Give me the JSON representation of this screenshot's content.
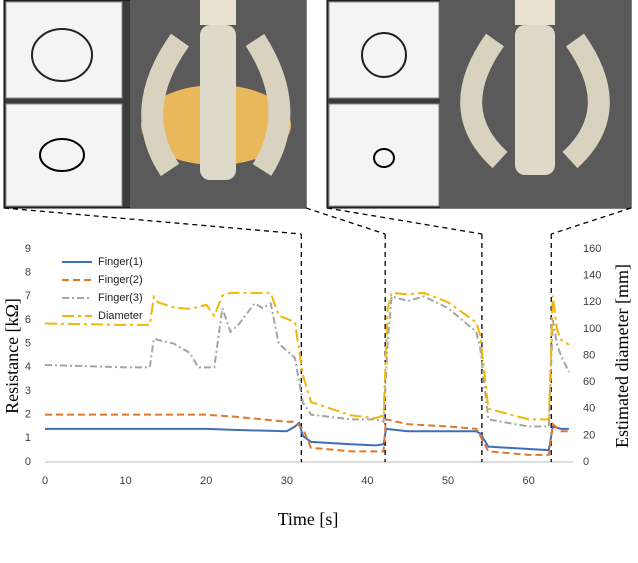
{
  "chart_data": {
    "type": "line",
    "xlabel": "Time [s]",
    "ylabel": "Resistance [kΩ]",
    "y2label": "Estimated diameter [mm]",
    "xlim": [
      0,
      65.5
    ],
    "xticks": [
      0,
      10,
      20,
      30,
      40,
      50,
      60
    ],
    "ylim": [
      0,
      9
    ],
    "yticks": [
      0,
      1,
      2,
      3,
      4,
      5,
      6,
      7,
      8,
      9
    ],
    "y2lim": [
      0,
      160
    ],
    "y2ticks": [
      0,
      20,
      40,
      60,
      80,
      100,
      120,
      140,
      160
    ],
    "grid": false,
    "legend": "upper left",
    "highlight_x": [
      31.8,
      42.2,
      54.2,
      62.8
    ],
    "series": [
      {
        "name": "Finger(1)",
        "color": "#3f6fb5",
        "dash": "solid",
        "x": [
          0,
          10,
          20,
          24,
          30,
          31,
          31.5,
          32,
          33,
          38,
          41,
          42,
          42.3,
          45,
          50,
          53.5,
          54,
          55,
          60,
          62.5,
          63,
          64,
          65
        ],
        "values": [
          1.4,
          1.4,
          1.4,
          1.35,
          1.3,
          1.5,
          1.65,
          1.1,
          0.85,
          0.75,
          0.7,
          0.75,
          1.4,
          1.3,
          1.3,
          1.3,
          1.2,
          0.65,
          0.55,
          0.5,
          1.5,
          1.4,
          1.4
        ]
      },
      {
        "name": "Finger(2)",
        "color": "#e0782c",
        "dash": "dash",
        "x": [
          0,
          10,
          20,
          24,
          30,
          31,
          32,
          33,
          38,
          41,
          42,
          42.3,
          45,
          50,
          53.5,
          54,
          55,
          60,
          62.5,
          63,
          64,
          65
        ],
        "values": [
          2.0,
          2.0,
          2.0,
          1.9,
          1.7,
          1.7,
          1.4,
          0.6,
          0.45,
          0.45,
          0.45,
          1.8,
          1.6,
          1.5,
          1.4,
          1.1,
          0.45,
          0.3,
          0.3,
          1.6,
          1.3,
          1.3
        ]
      },
      {
        "name": "Finger(3)",
        "color": "#a5a5a5",
        "dash": "dashdot",
        "x": [
          0,
          10,
          13,
          13.5,
          16,
          18,
          19,
          21,
          22,
          23,
          24,
          26,
          27,
          28,
          29,
          31,
          32,
          33,
          38,
          41,
          42,
          42.5,
          43,
          45,
          47,
          50,
          53.5,
          54,
          55,
          60,
          62.5,
          63,
          63.5,
          64,
          65
        ],
        "values": [
          4.1,
          4.0,
          4.0,
          5.2,
          5.0,
          4.6,
          4.0,
          4.0,
          6.5,
          5.5,
          5.8,
          6.7,
          6.5,
          6.7,
          5.0,
          4.4,
          2.5,
          2.0,
          1.8,
          1.8,
          1.7,
          5.0,
          7.0,
          6.8,
          7.0,
          6.5,
          5.5,
          4.8,
          1.8,
          1.5,
          1.5,
          6.0,
          5.0,
          4.5,
          3.8
        ]
      },
      {
        "name": "Diameter",
        "color": "#f2b705",
        "dash": "longdashdot",
        "axis": "y2",
        "x": [
          0,
          10,
          13,
          13.5,
          14,
          16,
          18,
          20,
          21,
          22,
          23,
          25,
          28,
          29,
          31,
          32,
          33,
          38,
          41,
          42,
          42.5,
          43,
          45,
          47,
          50,
          53.5,
          54,
          55,
          60,
          62.5,
          63,
          63.5,
          64,
          65
        ],
        "values": [
          104,
          103,
          103,
          124,
          120,
          116,
          115,
          118,
          110,
          125,
          127,
          127,
          127,
          110,
          105,
          65,
          45,
          35,
          33,
          35,
          115,
          127,
          126,
          127,
          120,
          105,
          95,
          40,
          32,
          32,
          125,
          100,
          92,
          88
        ]
      }
    ]
  }
}
